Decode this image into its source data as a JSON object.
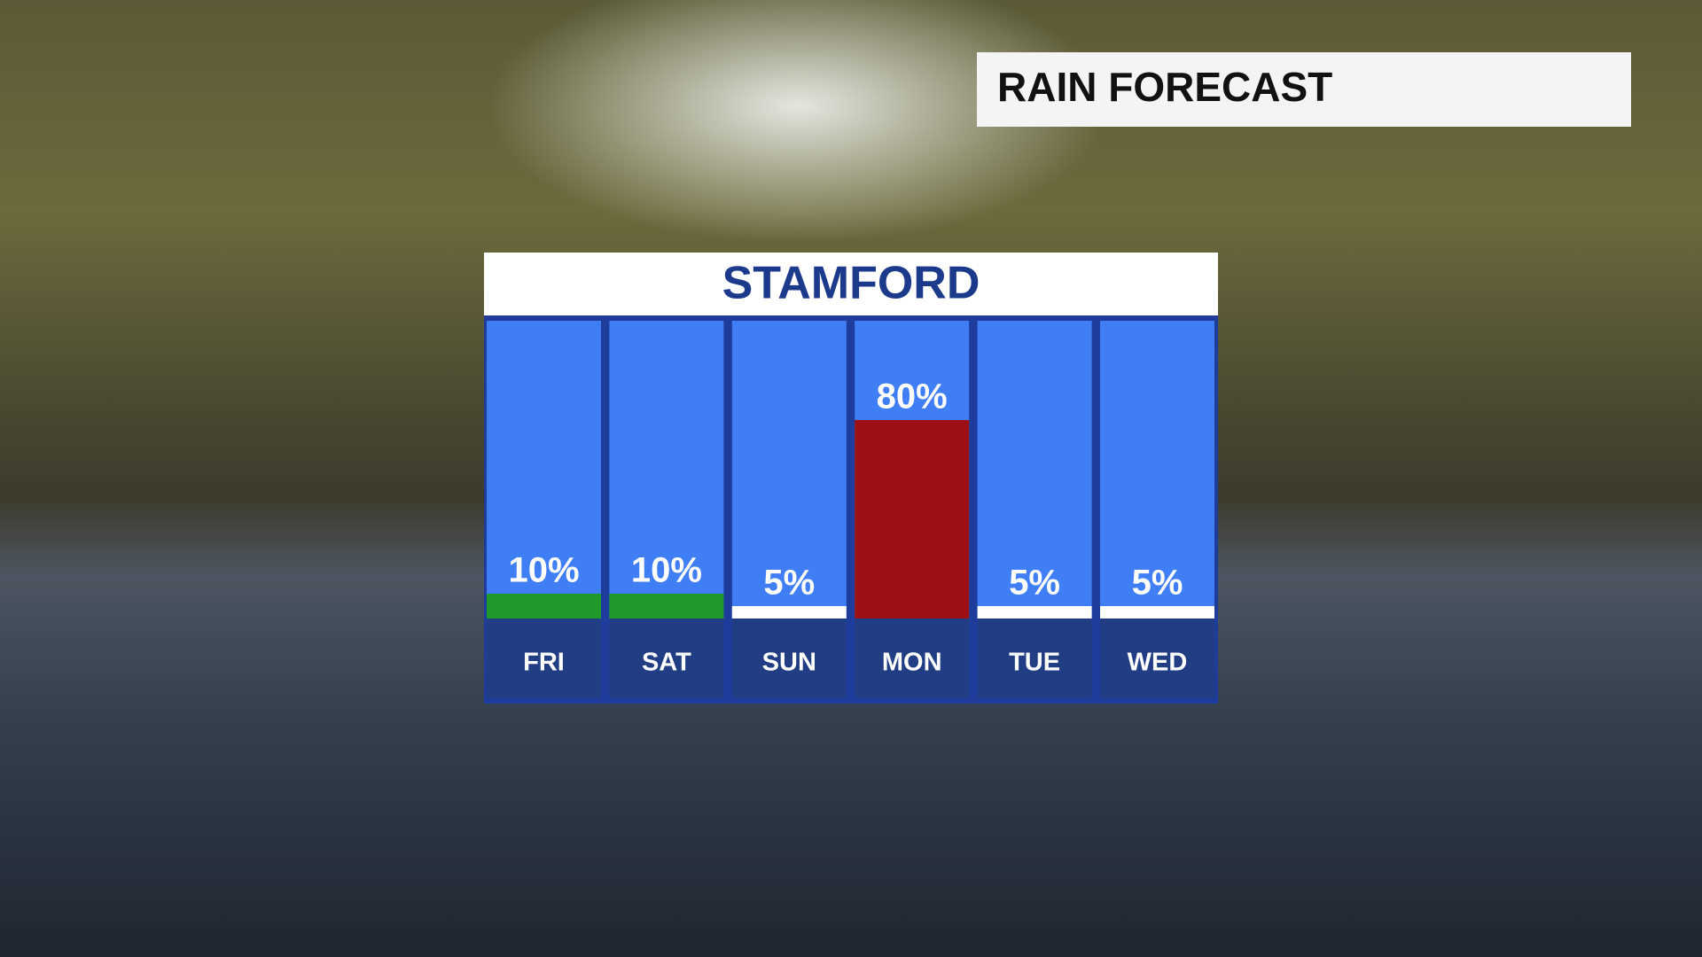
{
  "banner": "RAIN FORECAST",
  "chart_data": {
    "type": "bar",
    "title": "STAMFORD",
    "categories": [
      "FRI",
      "SAT",
      "SUN",
      "MON",
      "TUE",
      "WED"
    ],
    "values": [
      10,
      10,
      5,
      80,
      5,
      5
    ],
    "value_labels": [
      "10%",
      "10%",
      "5%",
      "80%",
      "5%",
      "5%"
    ],
    "colors": [
      "#1f9a2a",
      "#1f9a2a",
      "#ffffff",
      "#9c0f14",
      "#ffffff",
      "#ffffff"
    ],
    "ylim": [
      0,
      120
    ]
  }
}
